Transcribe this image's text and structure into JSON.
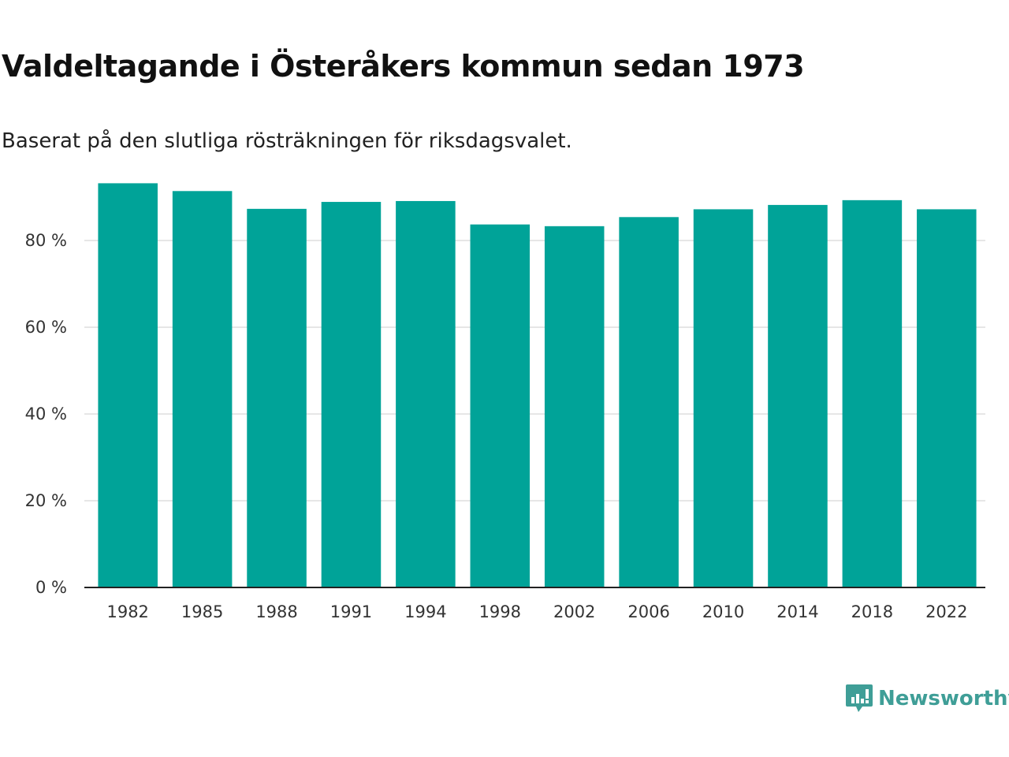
{
  "header": {
    "title": "Valdeltagande i Österåkers kommun sedan 1973",
    "subtitle": "Baserat på den slutliga rösträkningen för riksdagsvalet."
  },
  "chart_data": {
    "type": "bar",
    "title": "Valdeltagande i Österåkers kommun sedan 1973",
    "subtitle": "Baserat på den slutliga rösträkningen för riksdagsvalet.",
    "xlabel": "",
    "ylabel": "",
    "categories": [
      "1982",
      "1985",
      "1988",
      "1991",
      "1994",
      "1998",
      "2002",
      "2006",
      "2010",
      "2014",
      "2018",
      "2022"
    ],
    "values": [
      93.2,
      91.4,
      87.3,
      88.9,
      89.1,
      83.7,
      83.3,
      85.4,
      87.2,
      88.2,
      89.3,
      87.2
    ],
    "ylim": [
      0,
      100
    ],
    "yticks": [
      0,
      20,
      40,
      60,
      80
    ],
    "ytick_labels": [
      "0 %",
      "20 %",
      "40 %",
      "60 %",
      "80 %"
    ],
    "grid": true,
    "bar_color": "#00a398",
    "grid_color": "#dddddd",
    "axis_color": "#222222"
  },
  "brand": {
    "name": "Newsworthy",
    "icon": "newsworthy-logo-icon",
    "color": "#3f9e97"
  }
}
